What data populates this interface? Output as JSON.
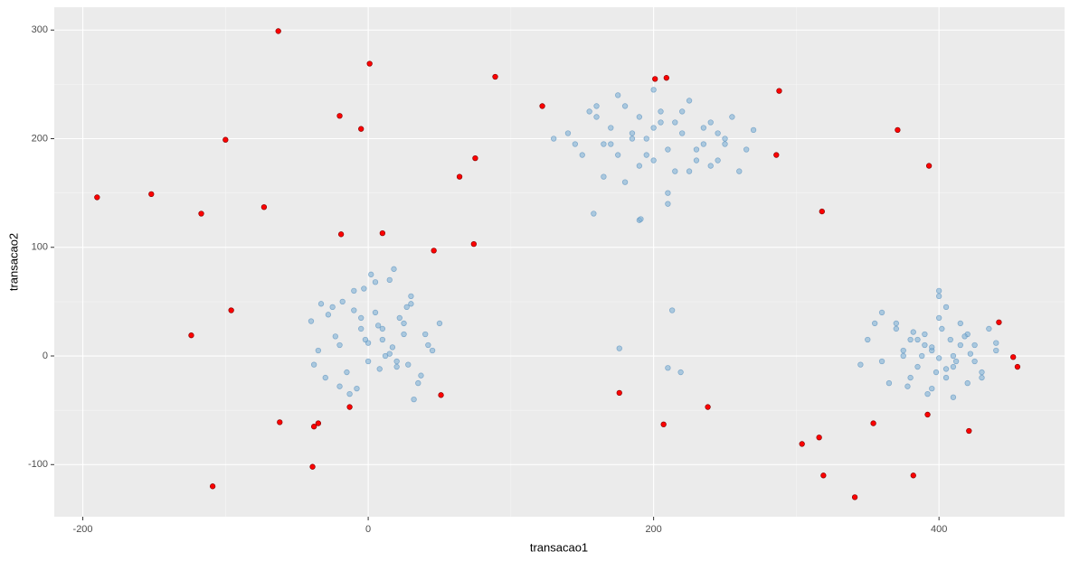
{
  "chart_data": {
    "type": "scatter",
    "x_label": "transacao1",
    "y_label": "transacao2",
    "xlim": [
      -220,
      488
    ],
    "ylim": [
      -148,
      321
    ],
    "xticks": [
      -200,
      0,
      200,
      400
    ],
    "yticks": [
      -100,
      0,
      100,
      200,
      300
    ],
    "grid": true,
    "series": [
      {
        "color": "#7fb1d6",
        "x": [
          -40,
          -35,
          -30,
          -25,
          -20,
          -15,
          -10,
          -5,
          0,
          5,
          10,
          15,
          20,
          25,
          30,
          35,
          40,
          45,
          -38,
          -28,
          -18,
          -8,
          2,
          12,
          22,
          32,
          42,
          -33,
          -23,
          -13,
          -3,
          7,
          17,
          27,
          37,
          0,
          10,
          20,
          -5,
          5,
          15,
          25,
          -20,
          30,
          -10,
          8,
          18,
          -2,
          28,
          50,
          140,
          150,
          160,
          170,
          180,
          190,
          200,
          210,
          220,
          230,
          240,
          250,
          260,
          270,
          145,
          155,
          165,
          175,
          185,
          195,
          205,
          215,
          225,
          235,
          245,
          255,
          265,
          130,
          200,
          210,
          220,
          190,
          180,
          230,
          170,
          240,
          160,
          250,
          200,
          215,
          185,
          225,
          195,
          205,
          175,
          235,
          165,
          245,
          210,
          190,
          350,
          360,
          370,
          380,
          390,
          400,
          410,
          420,
          430,
          440,
          355,
          365,
          375,
          385,
          395,
          405,
          415,
          425,
          435,
          345,
          400,
          395,
          405,
          390,
          410,
          385,
          415,
          380,
          420,
          375,
          425,
          398,
          402,
          392,
          408,
          388,
          412,
          370,
          430,
          360,
          440,
          400,
          395,
          405,
          382,
          418,
          378,
          422,
          400,
          410,
          176,
          210,
          219,
          213,
          191,
          158
        ],
        "y": [
          32,
          5,
          -20,
          45,
          10,
          -15,
          60,
          25,
          -5,
          40,
          15,
          70,
          -10,
          30,
          55,
          -25,
          20,
          5,
          -8,
          38,
          50,
          -30,
          75,
          0,
          35,
          -40,
          10,
          48,
          18,
          -35,
          62,
          28,
          8,
          45,
          -18,
          12,
          25,
          -5,
          35,
          68,
          2,
          20,
          -28,
          48,
          42,
          -12,
          80,
          15,
          -8,
          30,
          205,
          185,
          220,
          195,
          230,
          175,
          210,
          190,
          225,
          180,
          215,
          200,
          170,
          208,
          195,
          225,
          165,
          240,
          200,
          185,
          215,
          170,
          235,
          195,
          180,
          220,
          190,
          200,
          245,
          150,
          205,
          125,
          160,
          190,
          210,
          175,
          230,
          195,
          180,
          215,
          205,
          170,
          200,
          225,
          185,
          210,
          195,
          205,
          140,
          220,
          15,
          -5,
          25,
          -20,
          10,
          35,
          -10,
          20,
          -15,
          5,
          30,
          -25,
          0,
          15,
          -30,
          45,
          10,
          -5,
          25,
          -8,
          60,
          5,
          -20,
          20,
          0,
          -10,
          30,
          15,
          -25,
          5,
          10,
          -15,
          25,
          -35,
          15,
          0,
          -5,
          30,
          -20,
          40,
          12,
          -2,
          8,
          -12,
          22,
          18,
          -28,
          2,
          55,
          -38,
          7,
          -11,
          -15,
          42,
          126,
          131
        ]
      },
      {
        "color": "#ff0000",
        "x": [
          -190,
          -152,
          -117,
          -100,
          -73,
          -63,
          1,
          -20,
          -5,
          89,
          122,
          75,
          64,
          -19,
          10,
          46,
          74,
          -96,
          -124,
          -62,
          -38,
          -35,
          -13,
          -39,
          -109,
          51,
          176,
          207,
          238,
          201,
          209,
          288,
          286,
          318,
          371,
          393,
          304,
          316,
          319,
          341,
          354,
          382,
          392,
          421,
          442,
          452,
          455
        ],
        "y": [
          146,
          149,
          131,
          199,
          137,
          299,
          269,
          221,
          209,
          257,
          230,
          182,
          165,
          112,
          113,
          97,
          103,
          42,
          19,
          -61,
          -65,
          -62,
          -47,
          -102,
          -120,
          -36,
          -34,
          -63,
          -47,
          255,
          256,
          244,
          185,
          133,
          208,
          175,
          -81,
          -75,
          -110,
          -130,
          -62,
          -110,
          -54,
          -69,
          31,
          -1,
          -10
        ]
      }
    ]
  }
}
